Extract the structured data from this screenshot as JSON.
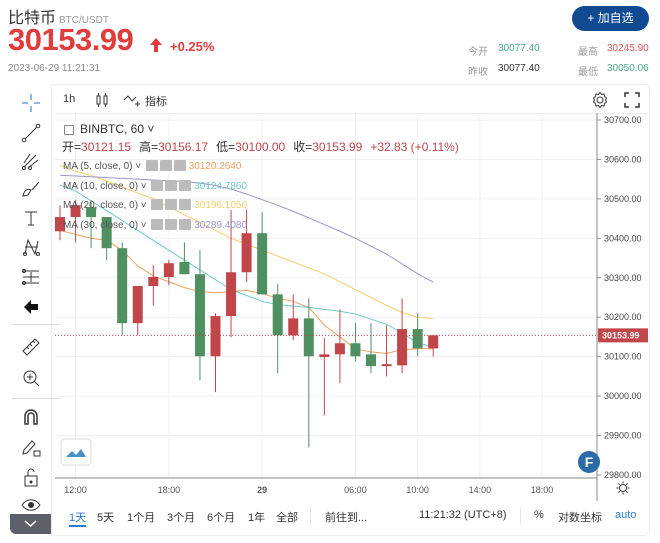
{
  "header": {
    "name": "比特币",
    "pair": "BTC/USDT",
    "price": "30153.99",
    "change": "+0.25%",
    "timestamp": "2023-06-29 11:21:31",
    "add_button": "+ 加自选",
    "stats": {
      "open_label": "今开",
      "open": "30077.40",
      "high_label": "最高",
      "high": "30245.90",
      "prev_label": "昨收",
      "prev": "30077.40",
      "low_label": "最低",
      "low": "30050.06"
    }
  },
  "colors": {
    "up": "#c0464a",
    "down": "#4f8f62",
    "brand": "#124a91",
    "ma5": "#f0a060",
    "ma10": "#6cc9cc",
    "ma20": "#f2cf6a",
    "ma30": "#9b94c9"
  },
  "toolbar": {
    "interval": "1h",
    "indicators": "指标"
  },
  "left_tools": [
    "crosshair-icon",
    "trend-line-icon",
    "pitchfork-icon",
    "brush-icon",
    "text-icon",
    "pattern-icon",
    "measure-range-icon",
    "back-arrow-icon",
    "ruler-icon",
    "zoom-in-icon",
    "magnet-icon",
    "lock-drawing-icon",
    "unlock-icon",
    "eye-icon"
  ],
  "legend": {
    "symbol": "BINBTC, 60",
    "ohlc": [
      {
        "k": "开=",
        "v": "30121.15"
      },
      {
        "k": "高=",
        "v": "30156.17"
      },
      {
        "k": "低=",
        "v": "30100.00"
      },
      {
        "k": "收=",
        "v": "30153.99"
      }
    ],
    "change": "+32.83 (+0.11%)",
    "ma": [
      {
        "label": "MA (5, close, 0)",
        "value": "30120.2640"
      },
      {
        "label": "MA (10, close, 0)",
        "value": "30124.7860"
      },
      {
        "label": "MA (20, close, 0)",
        "value": "30196.1050"
      },
      {
        "label": "MA (30, close, 0)",
        "value": "30289.4080"
      }
    ]
  },
  "chart_data": {
    "type": "candlestick",
    "ylim": [
      29800,
      30700
    ],
    "yticks": [
      "30700.00",
      "30600.00",
      "30500.00",
      "30400.00",
      "30300.00",
      "30200.00",
      "30100.00",
      "30000.00",
      "29900.00",
      "29800.00"
    ],
    "last_price_label": "30153.99",
    "xticks": [
      {
        "label": "12:00",
        "i": 1
      },
      {
        "label": "18:00",
        "i": 7
      },
      {
        "label": "29",
        "i": 13
      },
      {
        "label": "06:00",
        "i": 19
      },
      {
        "label": "10:00",
        "i": 23
      },
      {
        "label": "14:00",
        "i": 27
      },
      {
        "label": "18:00",
        "i": 31
      }
    ],
    "candles": [
      {
        "t": "06-28 11:00",
        "o": 30418,
        "h": 30484,
        "l": 30395,
        "c": 30454
      },
      {
        "t": "06-28 12:00",
        "o": 30454,
        "h": 30497,
        "l": 30390,
        "c": 30484
      },
      {
        "t": "06-28 13:00",
        "o": 30479,
        "h": 30497,
        "l": 30375,
        "c": 30454
      },
      {
        "t": "06-28 14:00",
        "o": 30454,
        "h": 30454,
        "l": 30345,
        "c": 30375
      },
      {
        "t": "06-28 15:00",
        "o": 30375,
        "h": 30390,
        "l": 30154,
        "c": 30185
      },
      {
        "t": "06-28 16:00",
        "o": 30185,
        "h": 30279,
        "l": 30154,
        "c": 30279
      },
      {
        "t": "06-28 17:00",
        "o": 30279,
        "h": 30332,
        "l": 30230,
        "c": 30302
      },
      {
        "t": "06-28 18:00",
        "o": 30302,
        "h": 30345,
        "l": 30281,
        "c": 30337
      },
      {
        "t": "06-28 19:00",
        "o": 30340,
        "h": 30390,
        "l": 30309,
        "c": 30309
      },
      {
        "t": "06-28 20:00",
        "o": 30309,
        "h": 30370,
        "l": 30040,
        "c": 30101
      },
      {
        "t": "06-28 21:00",
        "o": 30101,
        "h": 30210,
        "l": 30010,
        "c": 30203
      },
      {
        "t": "06-28 22:00",
        "o": 30203,
        "h": 30472,
        "l": 30149,
        "c": 30314
      },
      {
        "t": "06-28 23:00",
        "o": 30314,
        "h": 30472,
        "l": 30289,
        "c": 30413
      },
      {
        "t": "06-29 00:00",
        "o": 30413,
        "h": 30466,
        "l": 30258,
        "c": 30258
      },
      {
        "t": "06-29 01:00",
        "o": 30258,
        "h": 30284,
        "l": 30058,
        "c": 30154
      },
      {
        "t": "06-29 02:00",
        "o": 30154,
        "h": 30258,
        "l": 30142,
        "c": 30197
      },
      {
        "t": "06-29 03:00",
        "o": 30197,
        "h": 30248,
        "l": 29870,
        "c": 30101
      },
      {
        "t": "06-29 04:00",
        "o": 30099,
        "h": 30147,
        "l": 29951,
        "c": 30106
      },
      {
        "t": "06-29 05:00",
        "o": 30106,
        "h": 30220,
        "l": 30033,
        "c": 30134
      },
      {
        "t": "06-29 06:00",
        "o": 30134,
        "h": 30185,
        "l": 30088,
        "c": 30101
      },
      {
        "t": "06-29 07:00",
        "o": 30106,
        "h": 30185,
        "l": 30058,
        "c": 30076
      },
      {
        "t": "06-29 08:00",
        "o": 30076,
        "h": 30180,
        "l": 30050,
        "c": 30081
      },
      {
        "t": "06-29 09:00",
        "o": 30078,
        "h": 30248,
        "l": 30058,
        "c": 30170
      },
      {
        "t": "06-29 10:00",
        "o": 30170,
        "h": 30210,
        "l": 30101,
        "c": 30121
      },
      {
        "t": "06-29 11:00",
        "o": 30121,
        "h": 30156,
        "l": 30100,
        "c": 30154
      }
    ],
    "ma5": [
      30420,
      30410,
      30400,
      30395,
      30370,
      30330,
      30305,
      30290,
      30275,
      30265,
      30262,
      30265,
      30268,
      30260,
      30248,
      30240,
      30225,
      30180,
      30150,
      30120,
      30112,
      30108,
      30118,
      30120,
      30120
    ],
    "ma10": [
      30535,
      30520,
      30495,
      30470,
      30445,
      30420,
      30395,
      30370,
      30345,
      30320,
      30295,
      30270,
      30255,
      30240,
      30232,
      30228,
      30225,
      30220,
      30215,
      30208,
      30195,
      30182,
      30160,
      30135,
      30125
    ],
    "ma20": [
      30585,
      30570,
      30560,
      30545,
      30530,
      30515,
      30500,
      30480,
      30460,
      30440,
      30420,
      30400,
      30385,
      30370,
      30355,
      30340,
      30325,
      30310,
      30290,
      30270,
      30250,
      30230,
      30212,
      30200,
      30196
    ],
    "ma30": [
      30560,
      30558,
      30556,
      30554,
      30552,
      30550,
      30548,
      30546,
      30544,
      30540,
      30534,
      30525,
      30512,
      30498,
      30484,
      30468,
      30452,
      30435,
      30418,
      30400,
      30380,
      30360,
      30335,
      30310,
      30289
    ]
  },
  "bottom": {
    "ranges": [
      "1天",
      "5天",
      "1个月",
      "3个月",
      "6个月",
      "1年",
      "全部"
    ],
    "goto": "前往到...",
    "time": "11:21:32 (UTC+8)",
    "percent": "%",
    "log": "对数坐标",
    "auto": "auto"
  }
}
